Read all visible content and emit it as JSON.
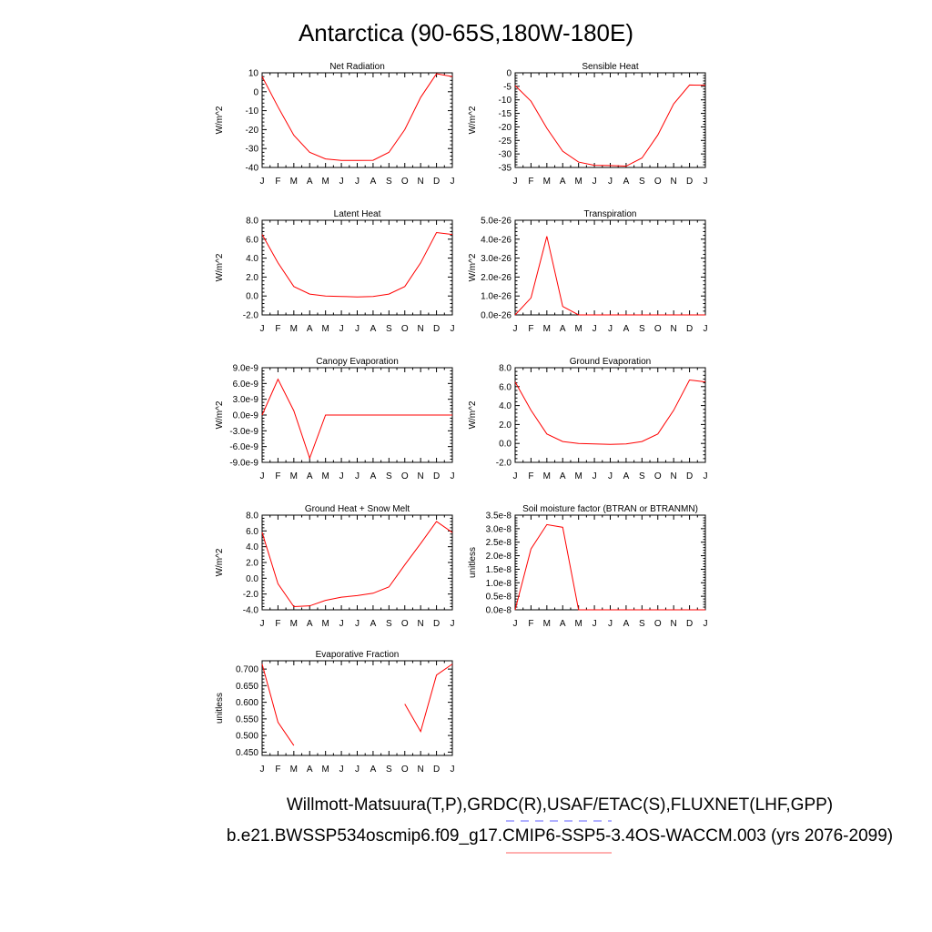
{
  "figure": {
    "title": "Antarctica (90-65S,180W-180E)",
    "footer_line1": "Willmott-Matsuura(T,P),GRDC(R),USAF/ETAC(S),FLUXNET(LHF,GPP)",
    "footer_line2": "b.e21.BWSSP534oscmip6.f09_g17.CMIP6-SSP5-3.4OS-WACCM.003 (yrs 2076-2099)",
    "legend_colors": {
      "obs": "#8080ff",
      "model": "#ff8080"
    },
    "line_color": "#ff0000"
  },
  "chart_data": [
    {
      "type": "line",
      "title": "Net Radiation",
      "ylabel": "W/m^2",
      "categories": [
        "J",
        "F",
        "M",
        "A",
        "M",
        "J",
        "J",
        "A",
        "S",
        "O",
        "N",
        "D",
        "J"
      ],
      "ylim": [
        -40,
        10
      ],
      "yticks": [
        10,
        0,
        -10,
        -20,
        -30,
        -40
      ],
      "ytick_labels": [
        "10",
        "0",
        "-10",
        "-20",
        "-30",
        "-40"
      ],
      "values": [
        8,
        -8,
        -23,
        -32,
        -35.5,
        -36.3,
        -36.3,
        -36.2,
        -32,
        -20,
        -3,
        9.5,
        8
      ]
    },
    {
      "type": "line",
      "title": "Sensible Heat",
      "ylabel": "W/m^2",
      "categories": [
        "J",
        "F",
        "M",
        "A",
        "M",
        "J",
        "J",
        "A",
        "S",
        "O",
        "N",
        "D",
        "J"
      ],
      "ylim": [
        -35,
        0
      ],
      "yticks": [
        0,
        -5,
        -10,
        -15,
        -20,
        -25,
        -30,
        -35
      ],
      "ytick_labels": [
        "0",
        "-5",
        "-10",
        "-15",
        "-20",
        "-25",
        "-30",
        "-35"
      ],
      "values": [
        -4.7,
        -10.5,
        -20.5,
        -29,
        -33,
        -34.2,
        -34.3,
        -34.5,
        -31.5,
        -23,
        -11.5,
        -4.5,
        -4.6
      ]
    },
    {
      "type": "line",
      "title": "Latent Heat",
      "ylabel": "W/m^2",
      "categories": [
        "J",
        "F",
        "M",
        "A",
        "M",
        "J",
        "J",
        "A",
        "S",
        "O",
        "N",
        "D",
        "J"
      ],
      "ylim": [
        -2,
        8
      ],
      "yticks": [
        8,
        6,
        4,
        2,
        0,
        -2
      ],
      "ytick_labels": [
        "8.0",
        "6.0",
        "4.0",
        "2.0",
        "0.0",
        "-2.0"
      ],
      "values": [
        6.5,
        3.5,
        1.0,
        0.2,
        0.0,
        -0.05,
        -0.1,
        -0.05,
        0.2,
        1.0,
        3.5,
        6.7,
        6.5
      ]
    },
    {
      "type": "line",
      "title": "Transpiration",
      "ylabel": "W/m^2",
      "categories": [
        "J",
        "F",
        "M",
        "A",
        "M",
        "J",
        "J",
        "A",
        "S",
        "O",
        "N",
        "D",
        "J"
      ],
      "ylim": [
        0,
        5e-26
      ],
      "yticks": [
        5e-26,
        4e-26,
        3e-26,
        2e-26,
        1e-26,
        0
      ],
      "ytick_labels": [
        "5.0e-26",
        "4.0e-26",
        "3.0e-26",
        "2.0e-26",
        "1.0e-26",
        "0.0e-26"
      ],
      "values": [
        0,
        9e-27,
        4.15e-26,
        4.5e-27,
        0,
        0,
        0,
        0,
        0,
        0,
        0,
        0,
        0
      ]
    },
    {
      "type": "line",
      "title": "Canopy Evaporation",
      "ylabel": "W/m^2",
      "categories": [
        "J",
        "F",
        "M",
        "A",
        "M",
        "J",
        "J",
        "A",
        "S",
        "O",
        "N",
        "D",
        "J"
      ],
      "ylim": [
        -9e-09,
        9e-09
      ],
      "yticks": [
        9e-09,
        6e-09,
        3e-09,
        0,
        -3e-09,
        -6e-09,
        -9e-09
      ],
      "ytick_labels": [
        "9.0e-9",
        "6.0e-9",
        "3.0e-9",
        "0.0e-9",
        "-3.0e-9",
        "-6.0e-9",
        "-9.0e-9"
      ],
      "values": [
        0,
        6.8e-09,
        8e-10,
        -8.2e-09,
        0,
        0,
        0,
        0,
        0,
        0,
        0,
        0,
        0
      ]
    },
    {
      "type": "line",
      "title": "Ground Evaporation",
      "ylabel": "W/m^2",
      "categories": [
        "J",
        "F",
        "M",
        "A",
        "M",
        "J",
        "J",
        "A",
        "S",
        "O",
        "N",
        "D",
        "J"
      ],
      "ylim": [
        -2,
        8
      ],
      "yticks": [
        8,
        6,
        4,
        2,
        0,
        -2
      ],
      "ytick_labels": [
        "8.0",
        "6.0",
        "4.0",
        "2.0",
        "0.0",
        "-2.0"
      ],
      "values": [
        6.5,
        3.5,
        1.0,
        0.2,
        0.0,
        -0.05,
        -0.1,
        -0.05,
        0.2,
        1.0,
        3.5,
        6.7,
        6.5
      ]
    },
    {
      "type": "line",
      "title": "Ground Heat + Snow Melt",
      "ylabel": "W/m^2",
      "categories": [
        "J",
        "F",
        "M",
        "A",
        "M",
        "J",
        "J",
        "A",
        "S",
        "O",
        "N",
        "D",
        "J"
      ],
      "ylim": [
        -4,
        8
      ],
      "yticks": [
        8,
        6,
        4,
        2,
        0,
        -2,
        -4
      ],
      "ytick_labels": [
        "8.0",
        "6.0",
        "4.0",
        "2.0",
        "0.0",
        "-2.0",
        "-4.0"
      ],
      "values": [
        5.8,
        -0.7,
        -3.6,
        -3.5,
        -2.8,
        -2.4,
        -2.2,
        -1.9,
        -1.1,
        1.7,
        4.4,
        7.2,
        5.8
      ]
    },
    {
      "type": "line",
      "title": "Soil moisture factor (BTRAN or BTRANMN)",
      "ylabel": "unitless",
      "categories": [
        "J",
        "F",
        "M",
        "A",
        "M",
        "J",
        "J",
        "A",
        "S",
        "O",
        "N",
        "D",
        "J"
      ],
      "ylim": [
        0,
        3.5e-08
      ],
      "yticks": [
        3.5e-08,
        3e-08,
        2.5e-08,
        2e-08,
        1.5e-08,
        1e-08,
        5e-09,
        0
      ],
      "ytick_labels": [
        "3.5e-8",
        "3.0e-8",
        "2.5e-8",
        "2.0e-8",
        "1.5e-8",
        "1.0e-8",
        "0.5e-8",
        "0.0e-8"
      ],
      "values": [
        0,
        2.25e-08,
        3.15e-08,
        3.05e-08,
        0,
        0,
        0,
        0,
        0,
        0,
        0,
        0,
        0
      ]
    },
    {
      "type": "line",
      "title": "Evaporative Fraction",
      "ylabel": "unitless",
      "categories": [
        "J",
        "F",
        "M",
        "A",
        "M",
        "J",
        "J",
        "A",
        "S",
        "O",
        "N",
        "D",
        "J"
      ],
      "ylim": [
        0.44,
        0.725
      ],
      "yticks": [
        0.7,
        0.65,
        0.6,
        0.55,
        0.5,
        0.45
      ],
      "ytick_labels": [
        "0.700",
        "0.650",
        "0.600",
        "0.550",
        "0.500",
        "0.450"
      ],
      "values": [
        0.715,
        0.54,
        0.47,
        null,
        null,
        null,
        null,
        null,
        null,
        0.595,
        0.512,
        0.682,
        0.715
      ]
    }
  ]
}
